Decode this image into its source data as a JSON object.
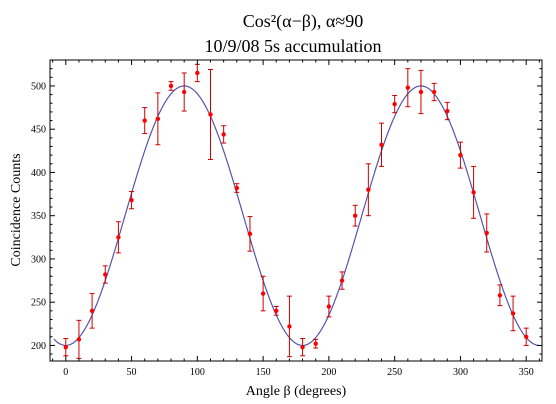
{
  "chart_data": {
    "type": "scatter",
    "title": [
      "Cos²(α−β), α≈90",
      "10/9/08 5s accumulation"
    ],
    "xlabel": "Angle β (degrees)",
    "ylabel": "Coincidence Counts",
    "xlim": [
      -12,
      362
    ],
    "ylim": [
      182,
      530
    ],
    "xticks": [
      0,
      50,
      100,
      150,
      200,
      250,
      300,
      350
    ],
    "yticks": [
      200,
      250,
      300,
      350,
      400,
      450,
      500
    ],
    "grid": false,
    "colors": {
      "points": "#ff0000",
      "errorbars": "#cc0000",
      "fit": "#5555aa"
    },
    "fit": {
      "type": "cos2",
      "offset": 200,
      "amplitude": 300,
      "period_deg": 180,
      "peak_at_deg": 90
    },
    "series": [
      {
        "x": [
          0,
          10,
          20,
          30,
          40,
          50,
          60,
          70,
          80,
          90,
          100,
          110,
          120,
          130,
          140,
          150,
          160,
          170,
          180,
          190,
          200,
          210,
          220,
          230,
          240,
          250,
          260,
          270,
          280,
          290,
          300,
          310,
          320,
          330,
          340,
          350
        ],
        "y": [
          198,
          207,
          240,
          282,
          325,
          368,
          460,
          462,
          500,
          493,
          515,
          467,
          444,
          382,
          329,
          260,
          240,
          222,
          198,
          202,
          245,
          275,
          350,
          380,
          432,
          479,
          498,
          493,
          493,
          471,
          420,
          377,
          330,
          258,
          237,
          210
        ],
        "yerr": [
          10,
          22,
          20,
          10,
          18,
          10,
          15,
          30,
          5,
          22,
          10,
          52,
          10,
          5,
          20,
          20,
          5,
          35,
          10,
          5,
          12,
          10,
          12,
          30,
          25,
          10,
          22,
          25,
          10,
          10,
          15,
          30,
          22,
          12,
          20,
          10
        ]
      }
    ]
  }
}
